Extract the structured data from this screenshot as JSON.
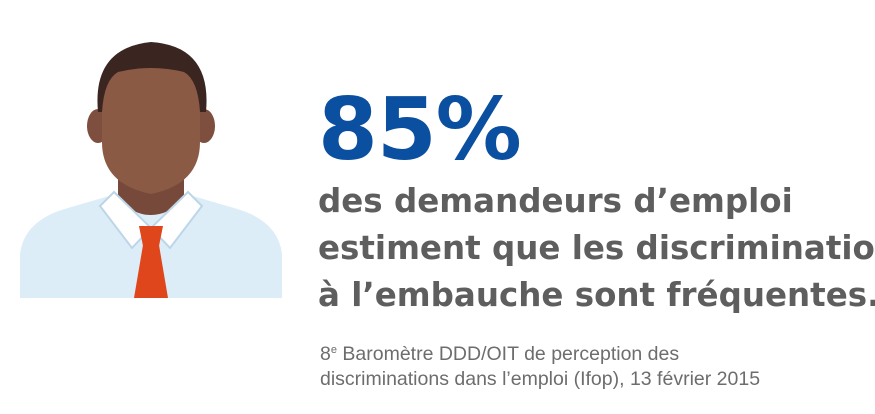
{
  "figure": {
    "icon": "man-with-tie-icon",
    "colors": {
      "skin": "#8b5a45",
      "hair": "#3b2520",
      "shirt": "#d9ecf8",
      "tie": "#e0461c"
    }
  },
  "statistic": {
    "value": "85%",
    "lines": [
      "des demandeurs d’emploi",
      "estiment que les discriminations",
      "à l’embauche sont fréquentes."
    ],
    "color": "#0b4fa0"
  },
  "source": {
    "ordinal": "8",
    "ordinal_suffix": "e",
    "line1_rest": " Baromètre DDD/OIT de perception des",
    "line2": "discriminations dans l’emploi (Ifop), 13 février 2015"
  }
}
